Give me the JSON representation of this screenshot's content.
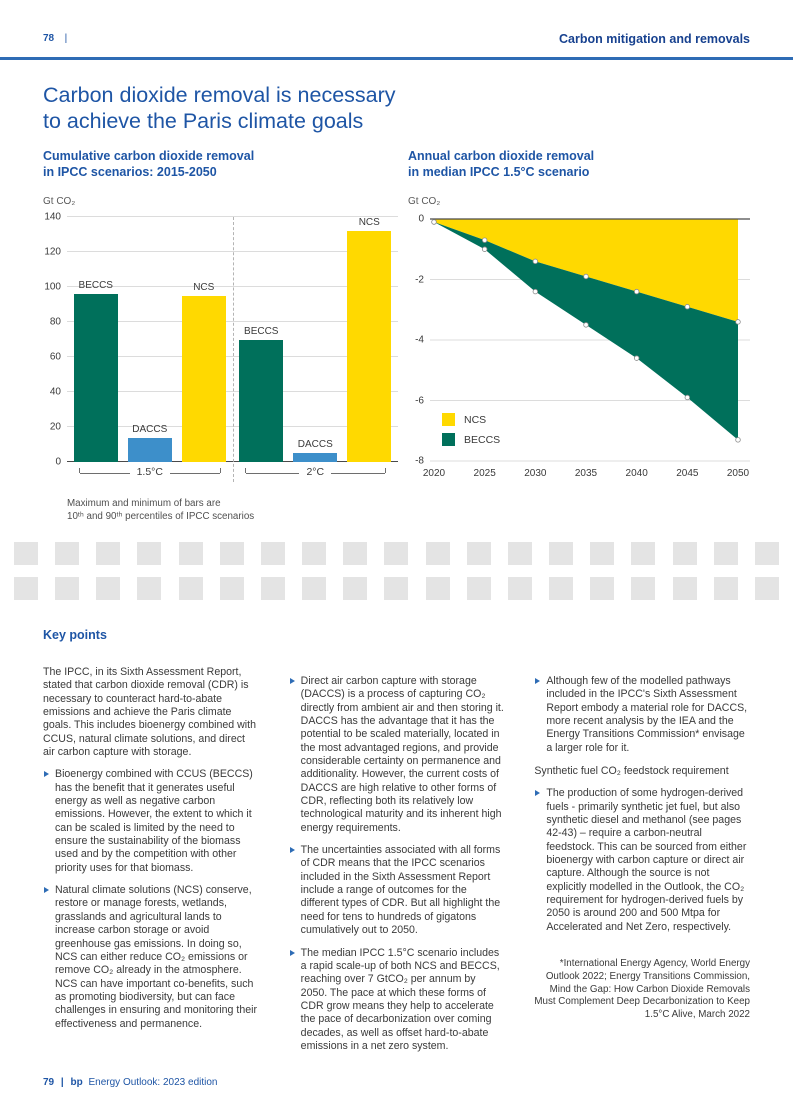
{
  "page": {
    "header_page_number": "78",
    "header_separator": "|",
    "header_section": "Carbon mitigation and removals",
    "title_line1": "Carbon dioxide removal is necessary",
    "title_line2": "to achieve the Paris climate goals",
    "footer_page_number": "79",
    "footer_separator": "|",
    "footer_brand": "bp",
    "footer_text": "Energy Outlook: 2023 edition"
  },
  "colors": {
    "heading_blue": "#1e55a5",
    "rule_blue": "#2e6cb5",
    "beccs_green": "#00705b",
    "daccs_blue": "#3d8fca",
    "ncs_yellow": "#ffd900",
    "grid_gray": "#dcdcdc",
    "axis_gray": "#4a4a4a",
    "body_text": "#3a3a3a",
    "placeholder_gray": "#e4e4e4"
  },
  "chart_data": [
    {
      "type": "bar",
      "title_line1": "Cumulative carbon dioxide removal",
      "title_line2": "in IPCC scenarios: 2015-2050",
      "unit_label": "Gt CO₂",
      "ylim": [
        0,
        140
      ],
      "yticks": [
        0,
        20,
        40,
        60,
        80,
        100,
        120,
        140
      ],
      "grid": true,
      "groups": [
        {
          "label": "1.5°C",
          "bars": [
            {
              "name": "BECCS",
              "value": 96,
              "color_key": "beccs_green"
            },
            {
              "name": "DACCS",
              "value": 14,
              "color_key": "daccs_blue"
            },
            {
              "name": "NCS",
              "value": 95,
              "color_key": "ncs_yellow"
            }
          ]
        },
        {
          "label": "2°C",
          "bars": [
            {
              "name": "BECCS",
              "value": 70,
              "color_key": "beccs_green"
            },
            {
              "name": "DACCS",
              "value": 5,
              "color_key": "daccs_blue"
            },
            {
              "name": "NCS",
              "value": 132,
              "color_key": "ncs_yellow"
            }
          ]
        }
      ],
      "footnote_line1": "Maximum and minimum of bars are",
      "footnote_line2": "10ᵗʰ and 90ᵗʰ percentiles of IPCC scenarios"
    },
    {
      "type": "area",
      "title_line1": "Annual carbon dioxide removal",
      "title_line2": "in median IPCC 1.5°C scenario",
      "unit_label": "Gt CO₂",
      "x": [
        2020,
        2025,
        2030,
        2035,
        2040,
        2045,
        2050
      ],
      "xticks": [
        2020,
        2025,
        2030,
        2035,
        2040,
        2045,
        2050
      ],
      "ylim": [
        -8,
        0
      ],
      "yticks": [
        0,
        -2,
        -4,
        -6,
        -8
      ],
      "grid": true,
      "legend_position": "bottom-left-inside",
      "series": [
        {
          "name": "NCS",
          "color_key": "ncs_yellow",
          "values": [
            -0.1,
            -0.7,
            -1.4,
            -1.9,
            -2.4,
            -2.9,
            -3.4
          ]
        },
        {
          "name": "BECCS",
          "color_key": "beccs_green",
          "values": [
            0.0,
            -0.3,
            -1.0,
            -1.6,
            -2.2,
            -3.0,
            -3.9
          ]
        }
      ],
      "stacked_totals": [
        -0.1,
        -1.0,
        -2.4,
        -3.5,
        -4.6,
        -5.9,
        -7.3
      ]
    }
  ],
  "image_placeholder": {
    "rows": 2,
    "squares_per_row": 19
  },
  "key_points": {
    "heading": "Key points",
    "columns": [
      {
        "intro": "The IPCC, in its Sixth Assessment Report, stated that carbon dioxide removal (CDR) is necessary to counteract hard-to-abate emissions and achieve the Paris climate goals. This includes bioenergy combined with CCUS, natural climate solutions, and direct air carbon capture with storage.",
        "bullets": [
          "Bioenergy combined with CCUS (BECCS) has the benefit that it generates useful energy as well as negative carbon emissions. However, the extent to which it can be scaled is limited by the need to ensure the sustainability of the biomass used and by the competition with other priority uses for that biomass.",
          "Natural climate solutions (NCS) conserve, restore or manage forests, wetlands, grasslands and agricultural lands to increase carbon storage or avoid greenhouse gas emissions. In doing so, NCS can either reduce CO₂ emissions or remove CO₂ already in the atmosphere. NCS can have important co-benefits, such as promoting biodiversity, but can face challenges in ensuring and monitoring their effectiveness and permanence."
        ]
      },
      {
        "bullets": [
          "Direct air carbon capture with storage (DACCS) is a process of capturing CO₂ directly from ambient air and then storing it. DACCS has the advantage that it has the potential to be scaled materially, located in the most advantaged regions, and provide considerable certainty on permanence and additionality. However, the current costs of DACCS are high relative to other forms of CDR, reflecting both its relatively low technological maturity and its inherent high energy requirements.",
          "The uncertainties associated with all forms of CDR means that the IPCC scenarios included in the Sixth Assessment Report include a range of outcomes for the different types of CDR. But all highlight the need for tens to hundreds of gigatons cumulatively out to 2050.",
          "The median IPCC 1.5°C scenario includes a rapid scale-up of both NCS and BECCS, reaching over 7 GtCO₂ per annum by 2050. The pace at which these forms of CDR grow means they help to accelerate the pace of decarbonization over coming decades, as well as offset hard-to-abate emissions in a net zero system."
        ]
      },
      {
        "bullets": [
          "Although few of the modelled pathways included in the IPCC's Sixth Assessment Report embody a material role for DACCS, more recent analysis by the IEA and the Energy Transitions Commission* envisage a larger role for it."
        ],
        "subheading": "Synthetic fuel CO₂ feedstock requirement",
        "bullets_after": [
          "The production of some hydrogen-derived fuels - primarily synthetic jet fuel, but also synthetic diesel and methanol (see pages 42-43) – require a carbon-neutral feedstock. This can be sourced from either bioenergy with carbon capture or direct air capture. Although the source is not explicitly modelled in the Outlook, the CO₂ requirement for hydrogen-derived fuels by 2050 is around 200 and 500 Mtpa for Accelerated and Net Zero, respectively."
        ],
        "footnote": "*International Energy Agency, World Energy Outlook 2022; Energy Transitions Commission, Mind the Gap: How Carbon Dioxide Removals Must Complement Deep Decarbonization to Keep 1.5°C Alive, March 2022"
      }
    ]
  }
}
